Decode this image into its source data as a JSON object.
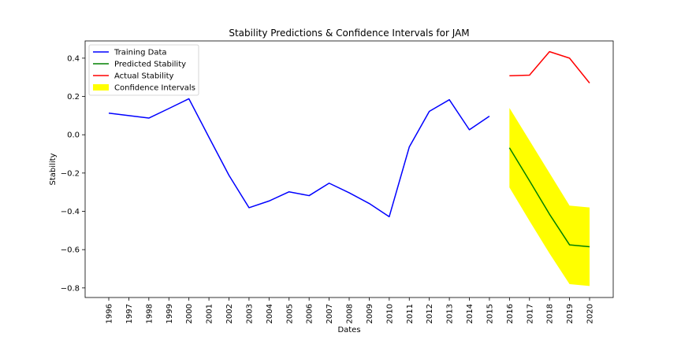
{
  "chart_data": {
    "type": "line",
    "title": "Stability Predictions & Confidence Intervals for JAM",
    "xlabel": "Dates",
    "ylabel": "Stability",
    "x": [
      "1996",
      "1997",
      "1998",
      "1999",
      "2000",
      "2001",
      "2002",
      "2003",
      "2004",
      "2005",
      "2006",
      "2007",
      "2008",
      "2009",
      "2010",
      "2011",
      "2012",
      "2013",
      "2014",
      "2015",
      "2016",
      "2017",
      "2018",
      "2019",
      "2020"
    ],
    "ylim": [
      -0.85,
      0.49
    ],
    "yticks": [
      "0.4",
      "0.2",
      "0.0",
      "−0.2",
      "−0.4",
      "−0.6",
      "−0.8"
    ],
    "ytick_values": [
      0.4,
      0.2,
      0.0,
      -0.2,
      -0.4,
      -0.6,
      -0.8
    ],
    "grid": false,
    "legend_position": "upper-left",
    "series": [
      {
        "name": "Training Data",
        "color": "#0000ff",
        "x": [
          "1996",
          "1997",
          "1998",
          "1999",
          "2000",
          "2001",
          "2002",
          "2003",
          "2004",
          "2005",
          "2006",
          "2007",
          "2008",
          "2009",
          "2010",
          "2011",
          "2012",
          "2013",
          "2014",
          "2015"
        ],
        "values": [
          0.113,
          0.1,
          0.087,
          0.137,
          0.188,
          -0.013,
          -0.212,
          -0.381,
          -0.346,
          -0.298,
          -0.318,
          -0.253,
          -0.303,
          -0.359,
          -0.428,
          -0.064,
          0.122,
          0.183,
          0.026,
          0.097
        ]
      },
      {
        "name": "Predicted Stability",
        "color": "#008000",
        "x": [
          "2016",
          "2017",
          "2018",
          "2019",
          "2020"
        ],
        "values": [
          -0.068,
          -0.24,
          -0.415,
          -0.575,
          -0.585
        ]
      },
      {
        "name": "Actual Stability",
        "color": "#ff0000",
        "x": [
          "2016",
          "2017",
          "2018",
          "2019",
          "2020"
        ],
        "values": [
          0.308,
          0.311,
          0.434,
          0.4,
          0.27
        ]
      }
    ],
    "confidence_interval": {
      "name": "Confidence Intervals",
      "color": "#ffff00",
      "x": [
        "2016",
        "2017",
        "2018",
        "2019",
        "2020"
      ],
      "upper": [
        0.14,
        -0.03,
        -0.2,
        -0.37,
        -0.38
      ],
      "lower": [
        -0.275,
        -0.45,
        -0.62,
        -0.78,
        -0.79
      ]
    }
  }
}
